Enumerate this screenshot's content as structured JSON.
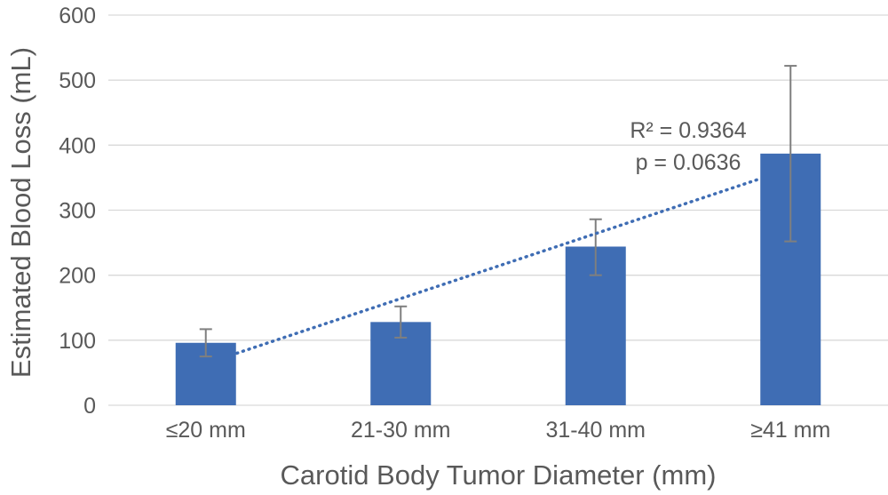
{
  "chart_data": {
    "type": "bar",
    "title": "",
    "xlabel": "Carotid Body Tumor Diameter (mm)",
    "ylabel": "Estimated Blood Loss (mL)",
    "categories": [
      "≤20 mm",
      "21-30 mm",
      "31-40 mm",
      "≥41 mm"
    ],
    "values": [
      96,
      128,
      244,
      387
    ],
    "error_low": [
      75,
      104,
      200,
      252
    ],
    "error_high": [
      117,
      152,
      286,
      522
    ],
    "ylim": [
      0,
      600
    ],
    "yticks": [
      0,
      100,
      200,
      300,
      400,
      500,
      600
    ],
    "ytick_labels": [
      "0",
      "100",
      "200",
      "300",
      "400",
      "500",
      "600"
    ],
    "grid": true,
    "trendline": {
      "type": "linear",
      "style": "dotted",
      "start": {
        "category_index": 0,
        "y": 80
      },
      "end": {
        "category_index": 3,
        "y": 348
      }
    },
    "annotations": {
      "r_squared": "R² = 0.9364",
      "p_value": "p = 0.0636"
    },
    "colors": {
      "bar": "#3f6db4",
      "trendline": "#3f6db4",
      "error_bar": "#7f7f7f",
      "grid": "#d9d9d9",
      "text": "#595959"
    }
  }
}
